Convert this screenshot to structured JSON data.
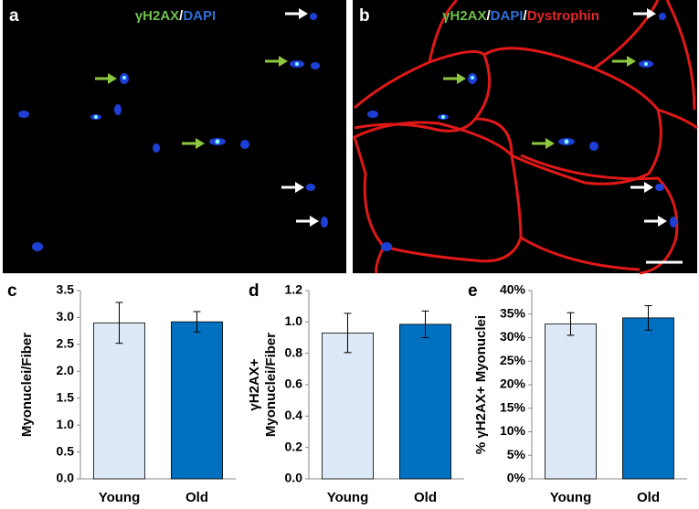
{
  "panels": [
    {
      "label": "a",
      "caption": [
        {
          "text": "γH2AX",
          "color": "#6fbf4a"
        },
        {
          "text": "/",
          "color": "#ffffff"
        },
        {
          "text": "DAPI",
          "color": "#2f6fd8"
        }
      ]
    },
    {
      "label": "b",
      "caption": [
        {
          "text": "γH2AX",
          "color": "#6fbf4a"
        },
        {
          "text": "/",
          "color": "#ffffff"
        },
        {
          "text": "DAPI",
          "color": "#2f6fd8"
        },
        {
          "text": "/",
          "color": "#ffffff"
        },
        {
          "text": "Dystrophin",
          "color": "#e8262a"
        }
      ]
    }
  ],
  "chart_data": [
    {
      "type": "bar",
      "label": "c",
      "ylabel": [
        "Myonuclei/Fiber"
      ],
      "categories": [
        "Young",
        "Old"
      ],
      "values": [
        2.9,
        2.92
      ],
      "errors": [
        0.38,
        0.19
      ],
      "colors": [
        "#dde9f6",
        "#0070c0"
      ],
      "ylim": [
        0,
        3.5
      ],
      "yticks": [
        {
          "value": 0,
          "label": "0.0"
        },
        0.5,
        {
          "value": 1,
          "label": "1.0"
        },
        1.5,
        {
          "value": 2,
          "label": "2.0"
        },
        2.5,
        {
          "value": 3,
          "label": "3.0"
        },
        3.5
      ]
    },
    {
      "type": "bar",
      "label": "d",
      "ylabel": [
        "γH2AX+",
        "Myonuclei/Fiber"
      ],
      "categories": [
        "Young",
        "Old"
      ],
      "values": [
        0.93,
        0.985
      ],
      "errors": [
        0.125,
        0.085
      ],
      "colors": [
        "#dde9f6",
        "#0070c0"
      ],
      "ylim": [
        0,
        1.2
      ],
      "yticks": [
        {
          "value": 0,
          "label": "0.0"
        },
        0.2,
        0.4,
        0.6,
        0.8,
        {
          "value": 1,
          "label": "1.0"
        },
        1.2
      ]
    },
    {
      "type": "bar",
      "label": "e",
      "ylabel": [
        "% γH2AX+ Myonuclei"
      ],
      "categories": [
        "Young",
        "Old"
      ],
      "values": [
        32.9,
        34.2
      ],
      "errors": [
        2.4,
        2.6
      ],
      "colors": [
        "#dde9f6",
        "#0070c0"
      ],
      "ylim": [
        0,
        40
      ],
      "yticks": [
        {
          "value": 0,
          "label": "0%"
        },
        {
          "value": 5,
          "label": "5%"
        },
        {
          "value": 10,
          "label": "10%"
        },
        {
          "value": 15,
          "label": "15%"
        },
        {
          "value": 20,
          "label": "20%"
        },
        {
          "value": 25,
          "label": "25%"
        },
        {
          "value": 30,
          "label": "30%"
        },
        {
          "value": 35,
          "label": "35%"
        },
        {
          "value": 40,
          "label": "40%"
        }
      ]
    }
  ]
}
